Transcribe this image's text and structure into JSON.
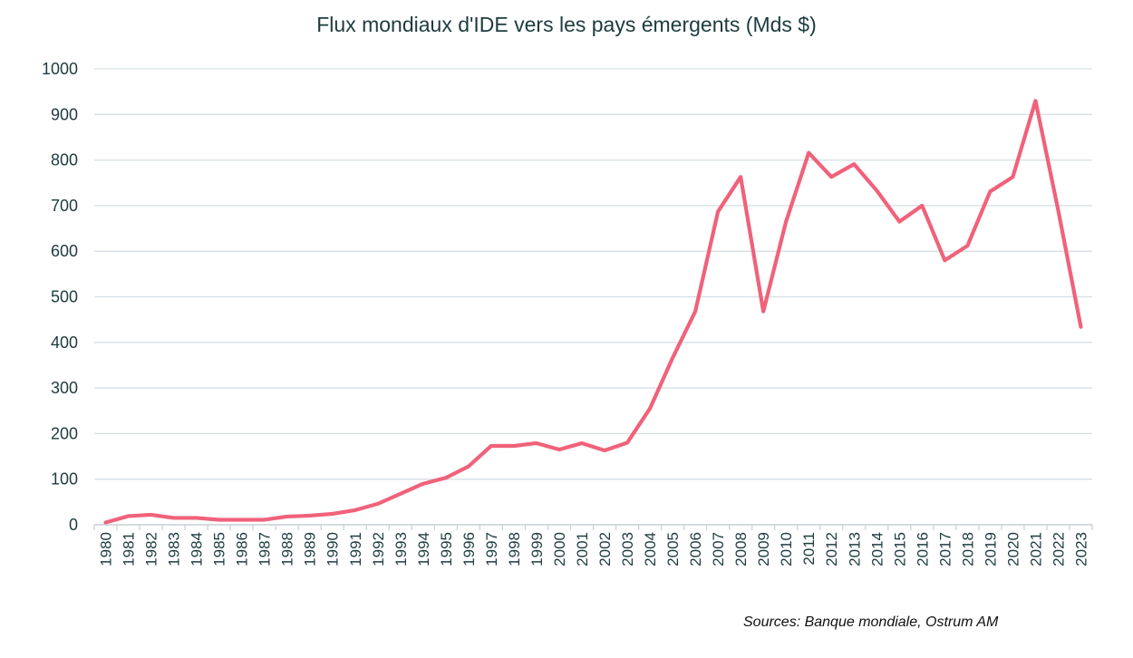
{
  "chart_data": {
    "type": "line",
    "title": "Flux mondiaux d'IDE vers les pays émergents (Mds $)",
    "source": "Sources: Banque mondiale, Ostrum AM",
    "xlabel": "",
    "ylabel": "",
    "ylim": [
      0,
      1000
    ],
    "yticks": [
      0,
      100,
      200,
      300,
      400,
      500,
      600,
      700,
      800,
      900,
      1000
    ],
    "grid": true,
    "legend": "none",
    "colors": {
      "line": "#f0627a",
      "grid": "#d6dfe3",
      "axis": "#c5d0d4",
      "text": "#1d3b3f"
    },
    "categories": [
      "1980",
      "1981",
      "1982",
      "1983",
      "1984",
      "1985",
      "1986",
      "1987",
      "1988",
      "1989",
      "1990",
      "1991",
      "1992",
      "1993",
      "1994",
      "1995",
      "1996",
      "1997",
      "1998",
      "1999",
      "2000",
      "2001",
      "2002",
      "2003",
      "2004",
      "2005",
      "2006",
      "2007",
      "2008",
      "2009",
      "2010",
      "2011",
      "2012",
      "2013",
      "2014",
      "2015",
      "2016",
      "2017",
      "2018",
      "2019",
      "2020",
      "2021",
      "2022",
      "2023"
    ],
    "series": [
      {
        "name": "Flux d'IDE vers les pays émergents",
        "values": [
          5,
          19,
          22,
          15,
          15,
          11,
          11,
          11,
          18,
          20,
          24,
          32,
          46,
          68,
          90,
          103,
          128,
          173,
          173,
          179,
          165,
          179,
          163,
          180,
          255,
          366,
          468,
          687,
          763,
          468,
          665,
          816,
          763,
          791,
          733,
          665,
          700,
          580,
          612,
          731,
          763,
          930,
          690,
          434
        ]
      }
    ]
  }
}
